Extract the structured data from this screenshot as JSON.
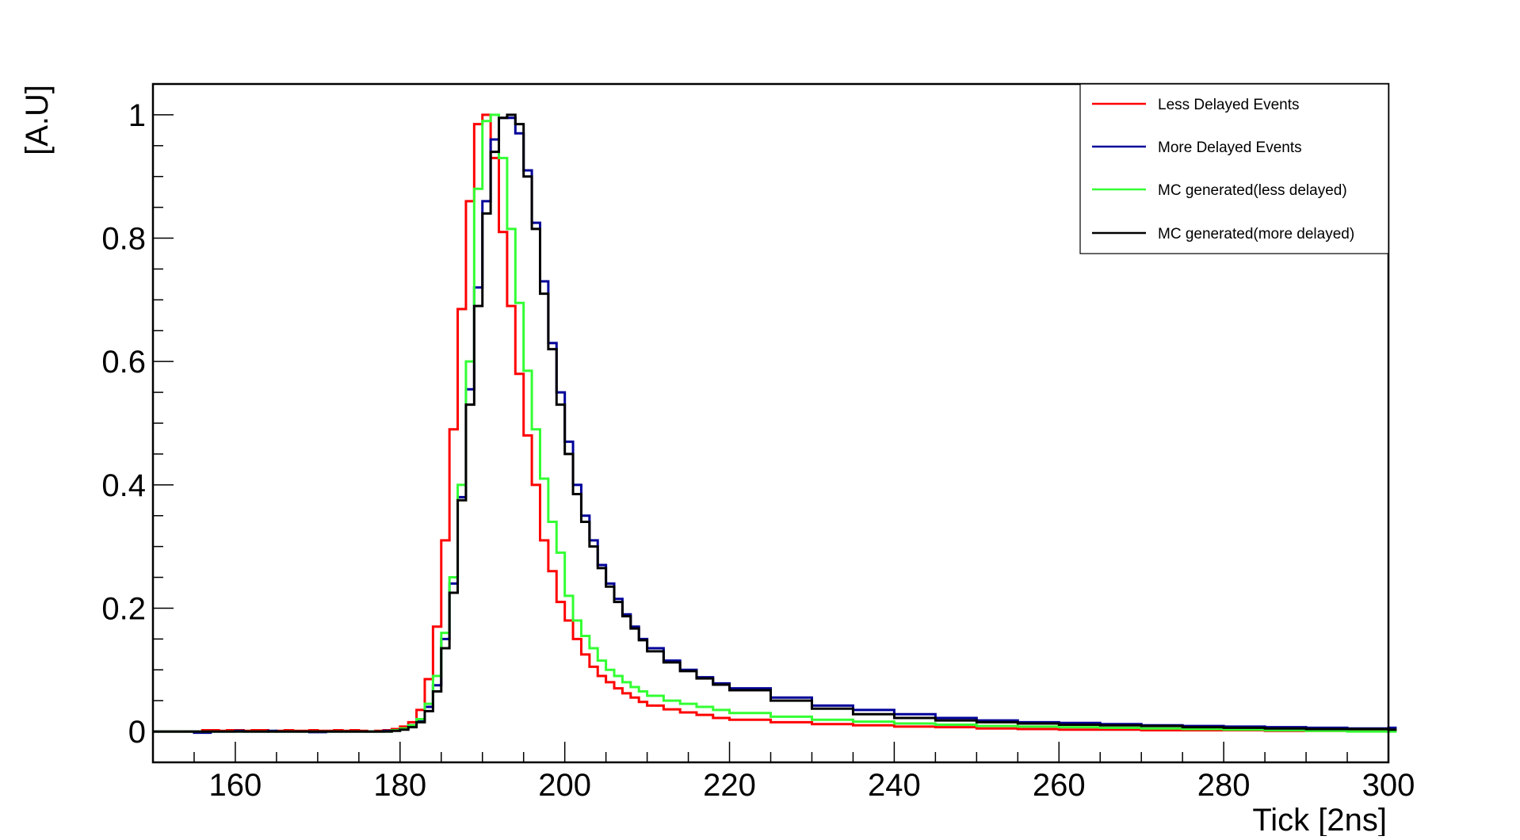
{
  "chart_data": {
    "type": "line",
    "step": true,
    "title": "",
    "xlabel": "Tick [2ns]",
    "ylabel": "[A.U]",
    "xlim": [
      150,
      300
    ],
    "ylim": [
      -0.05,
      1.05
    ],
    "x_ticks": [
      160,
      180,
      200,
      220,
      240,
      260,
      280,
      300
    ],
    "y_ticks": [
      0,
      0.2,
      0.4,
      0.6,
      0.8,
      1
    ],
    "x_tick_labels": [
      "160",
      "180",
      "200",
      "220",
      "240",
      "260",
      "280",
      "300"
    ],
    "y_tick_labels": [
      "0",
      "0.2",
      "0.4",
      "0.6",
      "0.8",
      "1"
    ],
    "grid": false,
    "legend_position": "top-right",
    "legend": [
      "Less Delayed Events",
      "More Delayed Events",
      "MC generated(less delayed)",
      "MC generated(more delayed)"
    ],
    "series": [
      {
        "name": "Less Delayed Events",
        "color": "#ff0000",
        "x": [
          150,
          151,
          152,
          153,
          154,
          155,
          156,
          157,
          158,
          159,
          160,
          161,
          162,
          163,
          164,
          165,
          166,
          167,
          168,
          169,
          170,
          171,
          172,
          173,
          174,
          175,
          176,
          177,
          178,
          179,
          180,
          181,
          182,
          183,
          184,
          185,
          186,
          187,
          188,
          189,
          190,
          191,
          192,
          193,
          194,
          195,
          196,
          197,
          198,
          199,
          200,
          201,
          202,
          203,
          204,
          205,
          206,
          207,
          208,
          209,
          210,
          212,
          214,
          216,
          218,
          220,
          225,
          230,
          235,
          240,
          245,
          250,
          255,
          260,
          265,
          270,
          275,
          280,
          285,
          290,
          295,
          300
        ],
        "y": [
          0,
          0,
          0,
          0,
          0,
          0,
          0.002,
          0.002,
          0.001,
          0.002,
          0.002,
          0.001,
          0.002,
          0.002,
          0,
          0.001,
          0.002,
          0.001,
          0.001,
          0.002,
          0.001,
          0.001,
          0.002,
          0.001,
          0.002,
          0.001,
          0,
          0.001,
          0.002,
          0.004,
          0.008,
          0.015,
          0.035,
          0.085,
          0.17,
          0.31,
          0.49,
          0.685,
          0.86,
          0.985,
          1.0,
          0.93,
          0.81,
          0.69,
          0.58,
          0.48,
          0.4,
          0.31,
          0.26,
          0.21,
          0.18,
          0.15,
          0.125,
          0.105,
          0.09,
          0.08,
          0.07,
          0.062,
          0.055,
          0.048,
          0.042,
          0.036,
          0.031,
          0.027,
          0.022,
          0.019,
          0.015,
          0.012,
          0.01,
          0.008,
          0.007,
          0.005,
          0.004,
          0.003,
          0.003,
          0.002,
          0.002,
          0.002,
          0.001,
          0.001,
          0.001,
          0.001
        ]
      },
      {
        "name": "More Delayed Events",
        "color": "#000099",
        "x": [
          150,
          151,
          152,
          153,
          154,
          155,
          156,
          157,
          158,
          159,
          160,
          161,
          162,
          163,
          164,
          165,
          166,
          167,
          168,
          169,
          170,
          171,
          172,
          173,
          174,
          175,
          176,
          177,
          178,
          179,
          180,
          181,
          182,
          183,
          184,
          185,
          186,
          187,
          188,
          189,
          190,
          191,
          192,
          193,
          194,
          195,
          196,
          197,
          198,
          199,
          200,
          201,
          202,
          203,
          204,
          205,
          206,
          207,
          208,
          209,
          210,
          212,
          214,
          216,
          218,
          220,
          225,
          230,
          235,
          240,
          245,
          250,
          255,
          260,
          265,
          270,
          275,
          280,
          285,
          290,
          295,
          300
        ],
        "y": [
          0,
          0,
          0,
          0,
          0,
          -0.002,
          -0.002,
          0,
          0,
          0,
          0.001,
          0,
          0,
          0,
          0.001,
          0,
          0,
          0,
          0,
          -0.001,
          -0.001,
          0,
          0,
          0,
          0,
          0,
          0,
          0,
          0.001,
          0.002,
          0.004,
          0.01,
          0.018,
          0.04,
          0.075,
          0.15,
          0.24,
          0.38,
          0.555,
          0.72,
          0.86,
          0.96,
          0.995,
          0.995,
          0.97,
          0.91,
          0.825,
          0.73,
          0.63,
          0.55,
          0.47,
          0.4,
          0.35,
          0.31,
          0.27,
          0.24,
          0.215,
          0.19,
          0.17,
          0.15,
          0.135,
          0.115,
          0.1,
          0.088,
          0.078,
          0.07,
          0.055,
          0.042,
          0.035,
          0.028,
          0.022,
          0.018,
          0.015,
          0.014,
          0.012,
          0.01,
          0.009,
          0.008,
          0.007,
          0.006,
          0.005,
          0.006
        ]
      },
      {
        "name": "MC generated(less delayed)",
        "color": "#33ff33",
        "x": [
          150,
          151,
          152,
          153,
          154,
          155,
          156,
          157,
          158,
          159,
          160,
          161,
          162,
          163,
          164,
          165,
          166,
          167,
          168,
          169,
          170,
          171,
          172,
          173,
          174,
          175,
          176,
          177,
          178,
          179,
          180,
          181,
          182,
          183,
          184,
          185,
          186,
          187,
          188,
          189,
          190,
          191,
          192,
          193,
          194,
          195,
          196,
          197,
          198,
          199,
          200,
          201,
          202,
          203,
          204,
          205,
          206,
          207,
          208,
          209,
          210,
          212,
          214,
          216,
          218,
          220,
          225,
          230,
          235,
          240,
          245,
          250,
          255,
          260,
          265,
          270,
          275,
          280,
          285,
          290,
          295,
          300
        ],
        "y": [
          0,
          0,
          0,
          0,
          0,
          0,
          0,
          0,
          0,
          0,
          0,
          0,
          0,
          0,
          0,
          0,
          0,
          0,
          0,
          0,
          0,
          0,
          0,
          0,
          0,
          0,
          0,
          0,
          0,
          0.002,
          0.005,
          0.01,
          0.02,
          0.045,
          0.09,
          0.16,
          0.25,
          0.4,
          0.6,
          0.88,
          0.99,
          1.0,
          0.93,
          0.815,
          0.695,
          0.585,
          0.49,
          0.41,
          0.34,
          0.29,
          0.22,
          0.18,
          0.155,
          0.135,
          0.115,
          0.1,
          0.09,
          0.08,
          0.072,
          0.065,
          0.058,
          0.05,
          0.045,
          0.04,
          0.035,
          0.03,
          0.024,
          0.019,
          0.016,
          0.013,
          0.011,
          0.009,
          0.008,
          0.007,
          0.006,
          0.005,
          0.004,
          0.003,
          0.002,
          0.001,
          0,
          0
        ]
      },
      {
        "name": "MC generated(more delayed)",
        "color": "#000000",
        "x": [
          150,
          151,
          152,
          153,
          154,
          155,
          156,
          157,
          158,
          159,
          160,
          161,
          162,
          163,
          164,
          165,
          166,
          167,
          168,
          169,
          170,
          171,
          172,
          173,
          174,
          175,
          176,
          177,
          178,
          179,
          180,
          181,
          182,
          183,
          184,
          185,
          186,
          187,
          188,
          189,
          190,
          191,
          192,
          193,
          194,
          195,
          196,
          197,
          198,
          199,
          200,
          201,
          202,
          203,
          204,
          205,
          206,
          207,
          208,
          209,
          210,
          212,
          214,
          216,
          218,
          220,
          225,
          230,
          235,
          240,
          245,
          250,
          255,
          260,
          265,
          270,
          275,
          280,
          285,
          290,
          295,
          300
        ],
        "y": [
          0,
          0,
          0,
          0,
          0,
          0,
          0,
          0,
          0,
          0,
          0,
          0,
          0,
          0,
          0,
          0,
          0,
          0,
          0,
          0,
          0,
          0,
          0,
          0,
          0,
          0,
          0,
          0,
          0,
          0.001,
          0.003,
          0.007,
          0.015,
          0.033,
          0.065,
          0.135,
          0.225,
          0.375,
          0.53,
          0.69,
          0.84,
          0.94,
          0.995,
          1.0,
          0.985,
          0.9,
          0.815,
          0.71,
          0.62,
          0.53,
          0.45,
          0.385,
          0.34,
          0.3,
          0.265,
          0.235,
          0.21,
          0.187,
          0.167,
          0.148,
          0.13,
          0.112,
          0.098,
          0.086,
          0.076,
          0.067,
          0.05,
          0.037,
          0.028,
          0.022,
          0.018,
          0.015,
          0.013,
          0.011,
          0.01,
          0.009,
          0.007,
          0.006,
          0.005,
          0.004,
          0.004,
          0.003
        ]
      }
    ]
  }
}
